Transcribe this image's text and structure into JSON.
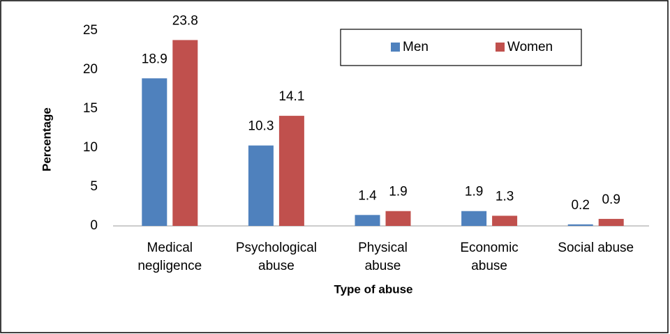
{
  "chart_data": {
    "type": "bar",
    "categories": [
      "Medical negligence",
      "Psychological abuse",
      "Physical abuse",
      "Economic abuse",
      "Social abuse"
    ],
    "series": [
      {
        "name": "Men",
        "color": "#4f81bd",
        "values": [
          18.9,
          10.3,
          1.4,
          1.9,
          0.2
        ]
      },
      {
        "name": "Women",
        "color": "#c0504d",
        "values": [
          23.8,
          14.1,
          1.9,
          1.3,
          0.9
        ]
      }
    ],
    "xlabel": "Type of abuse",
    "ylabel": "Percentage",
    "ylim": [
      0,
      25
    ],
    "yticks": [
      0,
      5,
      10,
      15,
      20,
      25
    ],
    "grid": false,
    "legend": "upper right"
  }
}
